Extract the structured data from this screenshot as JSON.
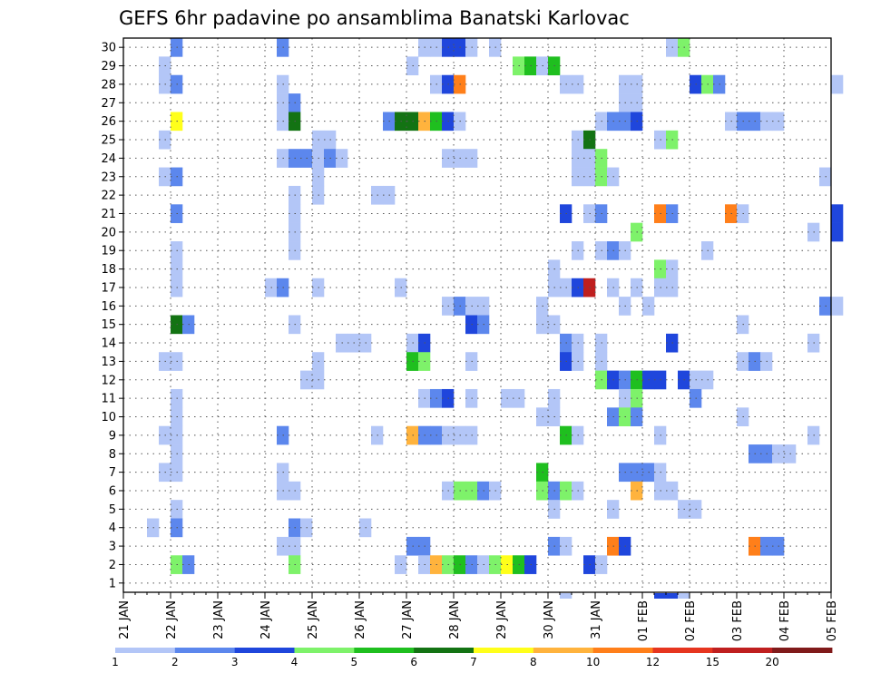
{
  "chart_data": {
    "type": "heatmap",
    "title": "GEFS 6hr padavine po ansamblima Banatski Karlovac",
    "xlabel": "",
    "ylabel": "",
    "x_tick_labels": [
      "21 JAN",
      "22 JAN",
      "23 JAN",
      "24 JAN",
      "25 JAN",
      "26 JAN",
      "27 JAN",
      "28 JAN",
      "29 JAN",
      "30 JAN",
      "31 JAN",
      "01 FEB",
      "02 FEB",
      "03 FEB",
      "04 FEB",
      "05 FEB"
    ],
    "x_range_steps": [
      0,
      60
    ],
    "y_members": [
      1,
      2,
      3,
      4,
      5,
      6,
      7,
      8,
      9,
      10,
      11,
      12,
      13,
      14,
      15,
      16,
      17,
      18,
      19,
      20,
      21,
      22,
      23,
      24,
      25,
      26,
      27,
      28,
      29,
      30
    ],
    "grid": true,
    "legend": {
      "position": "bottom",
      "labels": [
        "1",
        "2",
        "3",
        "4",
        "5",
        "6",
        "7",
        "8",
        "10",
        "12",
        "15",
        "20"
      ],
      "colors": [
        "#b3c6f7",
        "#5c87ed",
        "#1f46dc",
        "#7ef26a",
        "#1fbf1f",
        "#137313",
        "#ffff1a",
        "#ffb33d",
        "#ff7f1a",
        "#e6351f",
        "#bf1f1f",
        "#801a1a"
      ]
    },
    "cells": [
      [
        4,
        30,
        2
      ],
      [
        13,
        30,
        2
      ],
      [
        25,
        30,
        1
      ],
      [
        26,
        30,
        1
      ],
      [
        27,
        30,
        3
      ],
      [
        28,
        30,
        3
      ],
      [
        29,
        30,
        1
      ],
      [
        31,
        30,
        1
      ],
      [
        46,
        30,
        1
      ],
      [
        47,
        30,
        4
      ],
      [
        3,
        29,
        1
      ],
      [
        24,
        29,
        1
      ],
      [
        33,
        29,
        4
      ],
      [
        34,
        29,
        5
      ],
      [
        35,
        29,
        1
      ],
      [
        36,
        29,
        5
      ],
      [
        3,
        28,
        1
      ],
      [
        4,
        28,
        2
      ],
      [
        13,
        28,
        1
      ],
      [
        26,
        28,
        1
      ],
      [
        27,
        28,
        3
      ],
      [
        28,
        28,
        9
      ],
      [
        37,
        28,
        1
      ],
      [
        38,
        28,
        1
      ],
      [
        42,
        28,
        1
      ],
      [
        43,
        28,
        1
      ],
      [
        48,
        28,
        3
      ],
      [
        49,
        28,
        4
      ],
      [
        50,
        28,
        2
      ],
      [
        60,
        28,
        1
      ],
      [
        13,
        27,
        1
      ],
      [
        14,
        27,
        2
      ],
      [
        42,
        27,
        1
      ],
      [
        43,
        27,
        1
      ],
      [
        4,
        26,
        7
      ],
      [
        13,
        26,
        1
      ],
      [
        14,
        26,
        6
      ],
      [
        22,
        26,
        2
      ],
      [
        23,
        26,
        6
      ],
      [
        24,
        26,
        6
      ],
      [
        25,
        26,
        8
      ],
      [
        26,
        26,
        5
      ],
      [
        27,
        26,
        3
      ],
      [
        28,
        26,
        1
      ],
      [
        40,
        26,
        1
      ],
      [
        41,
        26,
        2
      ],
      [
        42,
        26,
        2
      ],
      [
        43,
        26,
        3
      ],
      [
        51,
        26,
        1
      ],
      [
        52,
        26,
        2
      ],
      [
        53,
        26,
        2
      ],
      [
        54,
        26,
        1
      ],
      [
        55,
        26,
        1
      ],
      [
        3,
        25,
        1
      ],
      [
        16,
        25,
        1
      ],
      [
        17,
        25,
        1
      ],
      [
        38,
        25,
        1
      ],
      [
        39,
        25,
        6
      ],
      [
        45,
        25,
        1
      ],
      [
        46,
        25,
        4
      ],
      [
        13,
        24,
        1
      ],
      [
        14,
        24,
        2
      ],
      [
        15,
        24,
        2
      ],
      [
        16,
        24,
        1
      ],
      [
        17,
        24,
        2
      ],
      [
        18,
        24,
        1
      ],
      [
        27,
        24,
        1
      ],
      [
        28,
        24,
        1
      ],
      [
        29,
        24,
        1
      ],
      [
        38,
        24,
        1
      ],
      [
        39,
        24,
        1
      ],
      [
        40,
        24,
        4
      ],
      [
        3,
        23,
        1
      ],
      [
        4,
        23,
        2
      ],
      [
        16,
        23,
        1
      ],
      [
        38,
        23,
        1
      ],
      [
        39,
        23,
        1
      ],
      [
        40,
        23,
        4
      ],
      [
        41,
        23,
        1
      ],
      [
        59,
        23,
        1
      ],
      [
        14,
        22,
        1
      ],
      [
        16,
        22,
        1
      ],
      [
        21,
        22,
        1
      ],
      [
        22,
        22,
        1
      ],
      [
        4,
        21,
        2
      ],
      [
        14,
        21,
        1
      ],
      [
        37,
        21,
        3
      ],
      [
        39,
        21,
        1
      ],
      [
        40,
        21,
        2
      ],
      [
        45,
        21,
        9
      ],
      [
        46,
        21,
        2
      ],
      [
        51,
        21,
        9
      ],
      [
        52,
        21,
        1
      ],
      [
        60,
        21,
        3
      ],
      [
        14,
        20,
        1
      ],
      [
        43,
        20,
        4
      ],
      [
        58,
        20,
        1
      ],
      [
        60,
        20,
        3
      ],
      [
        4,
        19,
        1
      ],
      [
        14,
        19,
        1
      ],
      [
        38,
        19,
        1
      ],
      [
        40,
        19,
        1
      ],
      [
        41,
        19,
        2
      ],
      [
        42,
        19,
        1
      ],
      [
        49,
        19,
        1
      ],
      [
        4,
        18,
        1
      ],
      [
        36,
        18,
        1
      ],
      [
        45,
        18,
        4
      ],
      [
        46,
        18,
        1
      ],
      [
        4,
        17,
        1
      ],
      [
        12,
        17,
        1
      ],
      [
        13,
        17,
        2
      ],
      [
        16,
        17,
        1
      ],
      [
        23,
        17,
        1
      ],
      [
        36,
        17,
        1
      ],
      [
        37,
        17,
        1
      ],
      [
        38,
        17,
        3
      ],
      [
        39,
        17,
        11
      ],
      [
        41,
        17,
        1
      ],
      [
        43,
        17,
        1
      ],
      [
        45,
        17,
        1
      ],
      [
        46,
        17,
        1
      ],
      [
        27,
        16,
        1
      ],
      [
        28,
        16,
        2
      ],
      [
        29,
        16,
        1
      ],
      [
        30,
        16,
        1
      ],
      [
        35,
        16,
        1
      ],
      [
        42,
        16,
        1
      ],
      [
        44,
        16,
        1
      ],
      [
        59,
        16,
        2
      ],
      [
        60,
        16,
        1
      ],
      [
        4,
        15,
        6
      ],
      [
        5,
        15,
        2
      ],
      [
        14,
        15,
        1
      ],
      [
        29,
        15,
        3
      ],
      [
        30,
        15,
        2
      ],
      [
        35,
        15,
        1
      ],
      [
        36,
        15,
        1
      ],
      [
        52,
        15,
        1
      ],
      [
        18,
        14,
        1
      ],
      [
        19,
        14,
        1
      ],
      [
        20,
        14,
        1
      ],
      [
        24,
        14,
        1
      ],
      [
        25,
        14,
        3
      ],
      [
        37,
        14,
        2
      ],
      [
        38,
        14,
        1
      ],
      [
        40,
        14,
        1
      ],
      [
        46,
        14,
        3
      ],
      [
        58,
        14,
        1
      ],
      [
        3,
        13,
        1
      ],
      [
        4,
        13,
        1
      ],
      [
        16,
        13,
        1
      ],
      [
        24,
        13,
        5
      ],
      [
        25,
        13,
        4
      ],
      [
        29,
        13,
        1
      ],
      [
        37,
        13,
        3
      ],
      [
        38,
        13,
        1
      ],
      [
        40,
        13,
        1
      ],
      [
        52,
        13,
        1
      ],
      [
        53,
        13,
        2
      ],
      [
        54,
        13,
        1
      ],
      [
        15,
        12,
        1
      ],
      [
        16,
        12,
        1
      ],
      [
        40,
        12,
        4
      ],
      [
        41,
        12,
        3
      ],
      [
        42,
        12,
        2
      ],
      [
        43,
        12,
        5
      ],
      [
        44,
        12,
        3
      ],
      [
        45,
        12,
        3
      ],
      [
        47,
        12,
        3
      ],
      [
        48,
        12,
        1
      ],
      [
        49,
        12,
        1
      ],
      [
        4,
        11,
        1
      ],
      [
        25,
        11,
        1
      ],
      [
        26,
        11,
        2
      ],
      [
        27,
        11,
        3
      ],
      [
        29,
        11,
        1
      ],
      [
        32,
        11,
        1
      ],
      [
        33,
        11,
        1
      ],
      [
        36,
        11,
        1
      ],
      [
        42,
        11,
        1
      ],
      [
        43,
        11,
        4
      ],
      [
        48,
        11,
        2
      ],
      [
        4,
        10,
        1
      ],
      [
        35,
        10,
        1
      ],
      [
        36,
        10,
        1
      ],
      [
        41,
        10,
        2
      ],
      [
        42,
        10,
        4
      ],
      [
        43,
        10,
        2
      ],
      [
        52,
        10,
        1
      ],
      [
        3,
        9,
        1
      ],
      [
        4,
        9,
        1
      ],
      [
        13,
        9,
        2
      ],
      [
        21,
        9,
        1
      ],
      [
        24,
        9,
        8
      ],
      [
        25,
        9,
        2
      ],
      [
        26,
        9,
        2
      ],
      [
        27,
        9,
        1
      ],
      [
        28,
        9,
        1
      ],
      [
        29,
        9,
        1
      ],
      [
        37,
        9,
        5
      ],
      [
        38,
        9,
        1
      ],
      [
        45,
        9,
        1
      ],
      [
        58,
        9,
        1
      ],
      [
        4,
        8,
        1
      ],
      [
        53,
        8,
        2
      ],
      [
        54,
        8,
        2
      ],
      [
        55,
        8,
        1
      ],
      [
        56,
        8,
        1
      ],
      [
        3,
        7,
        1
      ],
      [
        4,
        7,
        1
      ],
      [
        13,
        7,
        1
      ],
      [
        35,
        7,
        5
      ],
      [
        42,
        7,
        2
      ],
      [
        43,
        7,
        2
      ],
      [
        44,
        7,
        2
      ],
      [
        45,
        7,
        1
      ],
      [
        13,
        6,
        1
      ],
      [
        14,
        6,
        1
      ],
      [
        27,
        6,
        1
      ],
      [
        28,
        6,
        4
      ],
      [
        29,
        6,
        4
      ],
      [
        30,
        6,
        2
      ],
      [
        31,
        6,
        1
      ],
      [
        35,
        6,
        4
      ],
      [
        36,
        6,
        2
      ],
      [
        37,
        6,
        4
      ],
      [
        38,
        6,
        1
      ],
      [
        43,
        6,
        8
      ],
      [
        45,
        6,
        1
      ],
      [
        46,
        6,
        1
      ],
      [
        4,
        5,
        1
      ],
      [
        36,
        5,
        1
      ],
      [
        41,
        5,
        1
      ],
      [
        47,
        5,
        1
      ],
      [
        48,
        5,
        1
      ],
      [
        2,
        4,
        1
      ],
      [
        4,
        4,
        2
      ],
      [
        14,
        4,
        2
      ],
      [
        15,
        4,
        1
      ],
      [
        20,
        4,
        1
      ],
      [
        13,
        3,
        1
      ],
      [
        14,
        3,
        1
      ],
      [
        24,
        3,
        2
      ],
      [
        25,
        3,
        2
      ],
      [
        36,
        3,
        2
      ],
      [
        37,
        3,
        1
      ],
      [
        41,
        3,
        9
      ],
      [
        42,
        3,
        3
      ],
      [
        53,
        3,
        9
      ],
      [
        54,
        3,
        2
      ],
      [
        55,
        3,
        2
      ],
      [
        4,
        2,
        4
      ],
      [
        5,
        2,
        2
      ],
      [
        14,
        2,
        4
      ],
      [
        23,
        2,
        1
      ],
      [
        25,
        2,
        1
      ],
      [
        26,
        2,
        8
      ],
      [
        27,
        2,
        4
      ],
      [
        28,
        2,
        5
      ],
      [
        29,
        2,
        2
      ],
      [
        30,
        2,
        1
      ],
      [
        31,
        2,
        4
      ],
      [
        32,
        2,
        7
      ],
      [
        33,
        2,
        5
      ],
      [
        34,
        2,
        3
      ],
      [
        39,
        2,
        3
      ],
      [
        40,
        2,
        1
      ]
    ],
    "cells_below_axis": [
      [
        37,
        1
      ],
      [
        45,
        3
      ],
      [
        46,
        3
      ],
      [
        47,
        1
      ]
    ]
  }
}
